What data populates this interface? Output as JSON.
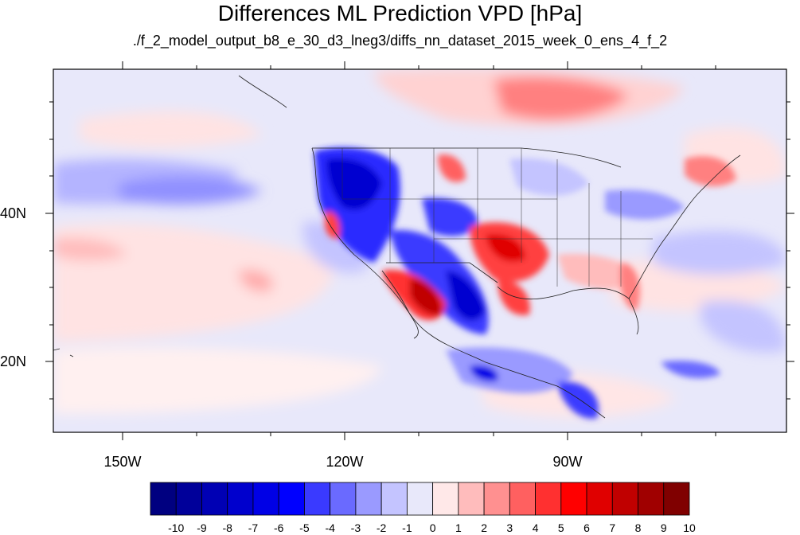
{
  "title": "Differences ML Prediction VPD [hPa]",
  "subtitle": "./f_2_model_output_b8_e_30_d3_lneg3/diffs_nn_dataset_2015_week_0_ens_4_f_2",
  "map": {
    "lat_labels": [
      "40N",
      "20N"
    ],
    "lon_labels": [
      "150W",
      "120W",
      "90W"
    ]
  },
  "colorbar": {
    "labels": [
      "-10",
      "-9",
      "-8",
      "-7",
      "-6",
      "-5",
      "-4",
      "-3",
      "-2",
      "-1",
      "0",
      "1",
      "2",
      "3",
      "4",
      "5",
      "6",
      "7",
      "8",
      "9",
      "10"
    ],
    "colors": [
      "#000080",
      "#00009a",
      "#0000b4",
      "#0000cd",
      "#0000e6",
      "#0000ff",
      "#3a3aff",
      "#6a6aff",
      "#9a9aff",
      "#c4c4ff",
      "#e8e8fa",
      "#ffe8e8",
      "#ffbcbc",
      "#ff9090",
      "#ff6060",
      "#ff3030",
      "#ff0000",
      "#e00000",
      "#c00000",
      "#a00000",
      "#800000"
    ]
  }
}
